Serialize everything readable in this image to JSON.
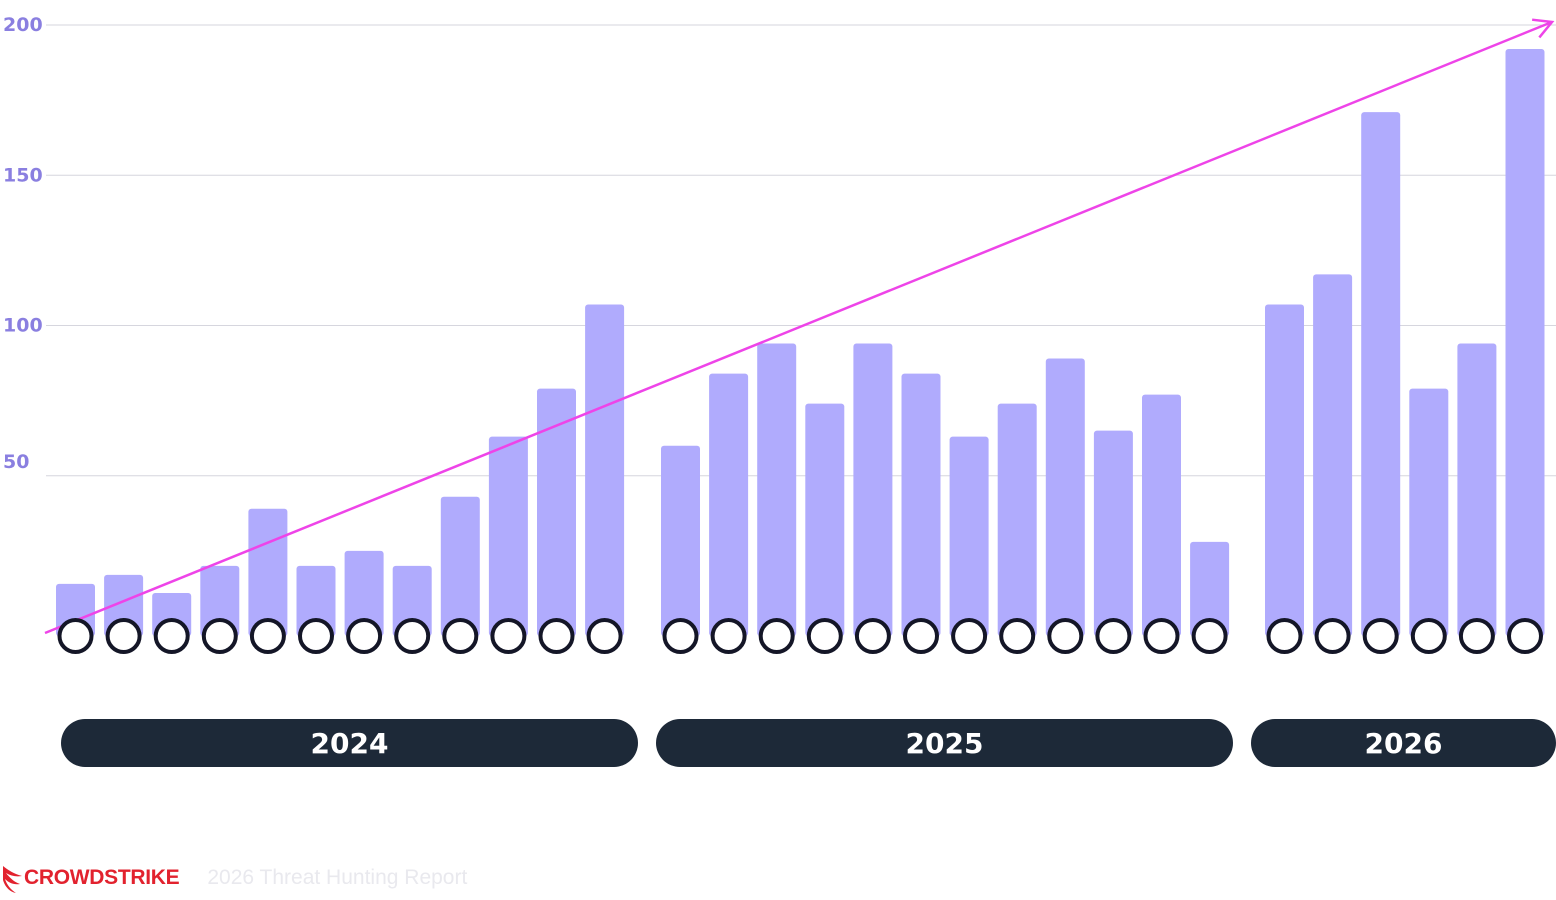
{
  "chart_data": {
    "type": "bar",
    "title": "",
    "xlabel": "",
    "ylabel": "",
    "ylim": [
      0,
      200
    ],
    "yticks": [
      "50",
      "100",
      "150",
      "200"
    ],
    "grid": true,
    "bar_color": "#b0abfd",
    "groups": [
      {
        "label": "2024",
        "values": [
          14,
          17,
          11,
          20,
          39,
          20,
          25,
          20,
          43,
          63,
          79,
          107
        ]
      },
      {
        "label": "2025",
        "values": [
          60,
          84,
          94,
          74,
          94,
          84,
          63,
          74,
          89,
          65,
          77,
          28
        ]
      },
      {
        "label": "2026",
        "values": [
          107,
          117,
          171,
          79,
          94,
          192
        ]
      }
    ],
    "trend": {
      "color": "#ee44e8",
      "from": 0,
      "to": 203
    }
  },
  "colors": {
    "pill": "#1d2938",
    "grid": "#d6d6de",
    "marker_stroke": "#141627",
    "brand": "#e2222e"
  },
  "footer": {
    "brand": "CROWDSTRIKE",
    "brand_icon": "crowdstrike-falcon-icon",
    "report_title": "2026 Threat Hunting Report"
  }
}
